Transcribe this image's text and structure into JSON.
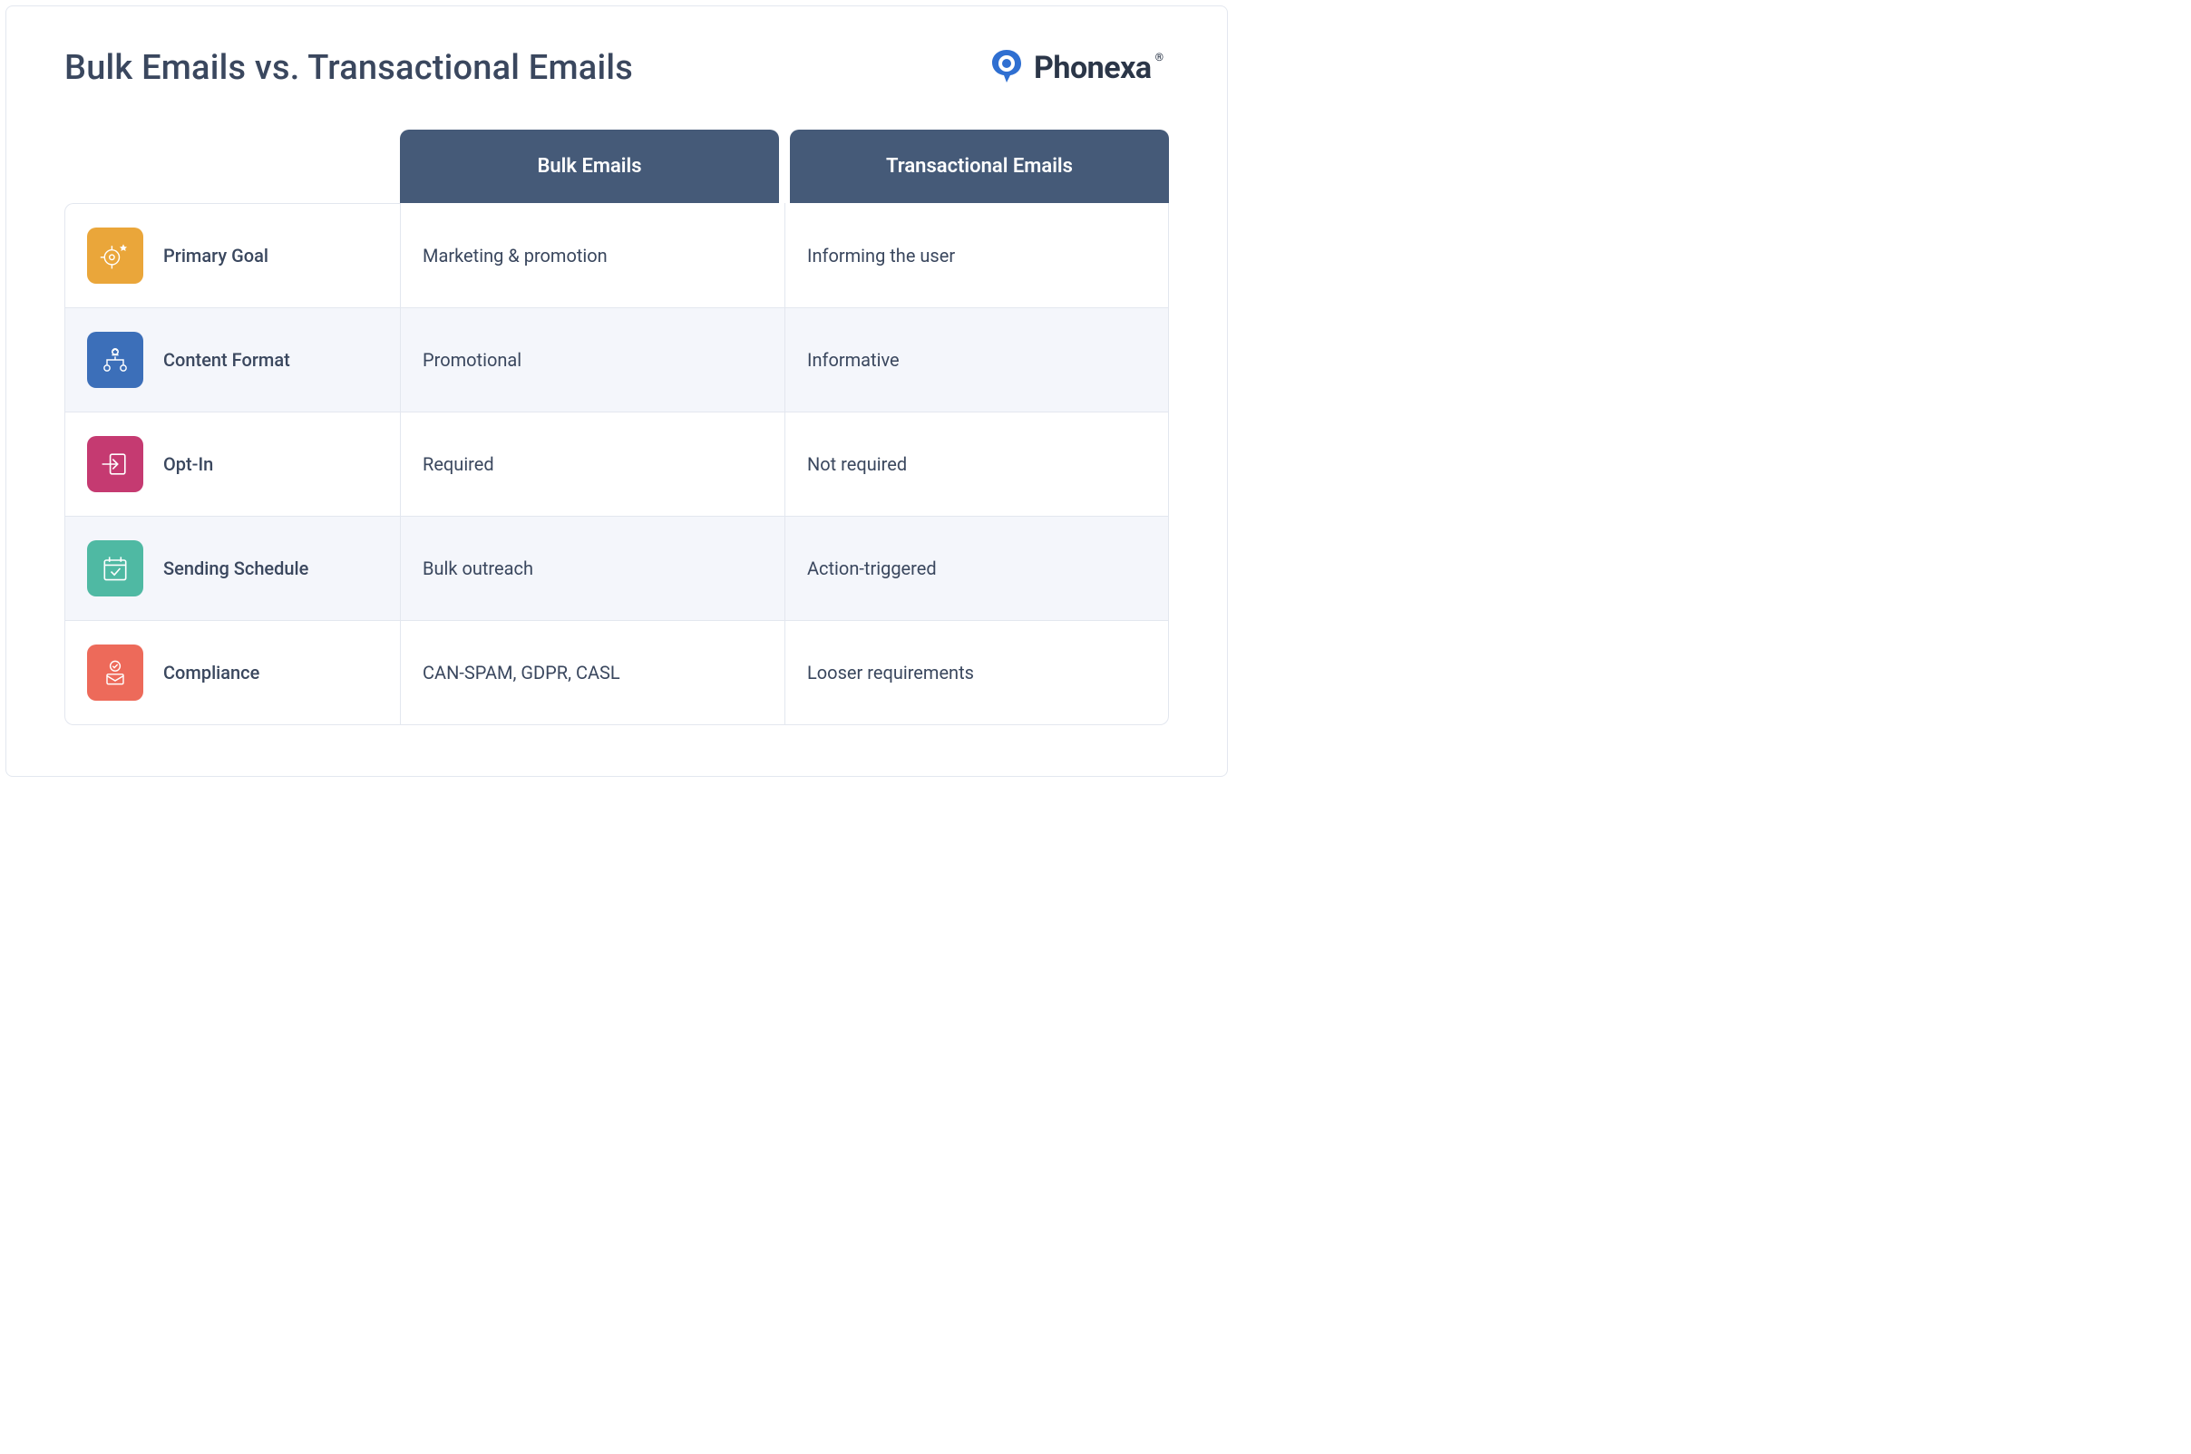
{
  "title": "Bulk Emails vs. Transactional Emails",
  "brand": {
    "name": "Phonexa",
    "reg": "®",
    "icon_color": "#2f6fd1"
  },
  "columns": {
    "a": "",
    "b": "Bulk Emails",
    "c": "Transactional Emails"
  },
  "colors": {
    "header_bg": "#455a78",
    "header_text": "#ffffff",
    "text": "#3a475e",
    "border": "#e3e7ef",
    "alt_row_bg": "#f4f6fb",
    "title_fontsize_pt": 29,
    "header_fontsize_pt": 17,
    "cell_fontsize_pt": 15
  },
  "rows": [
    {
      "icon": "target-star-icon",
      "icon_bg": "#eaa63a",
      "label": "Primary Goal",
      "b": "Marketing & promotion",
      "c": "Informing the user"
    },
    {
      "icon": "org-chart-icon",
      "icon_bg": "#3c6fb9",
      "label": "Content Format",
      "b": "Promotional",
      "c": "Informative"
    },
    {
      "icon": "arrow-in-icon",
      "icon_bg": "#c53a71",
      "label": "Opt-In",
      "b": "Required",
      "c": "Not required"
    },
    {
      "icon": "calendar-check-icon",
      "icon_bg": "#4fb9a3",
      "label": "Sending Schedule",
      "b": "Bulk outreach",
      "c": "Action-triggered"
    },
    {
      "icon": "check-mail-icon",
      "icon_bg": "#ed6a5a",
      "label": "Compliance",
      "b": "CAN-SPAM, GDPR, CASL",
      "c": "Looser requirements"
    }
  ]
}
